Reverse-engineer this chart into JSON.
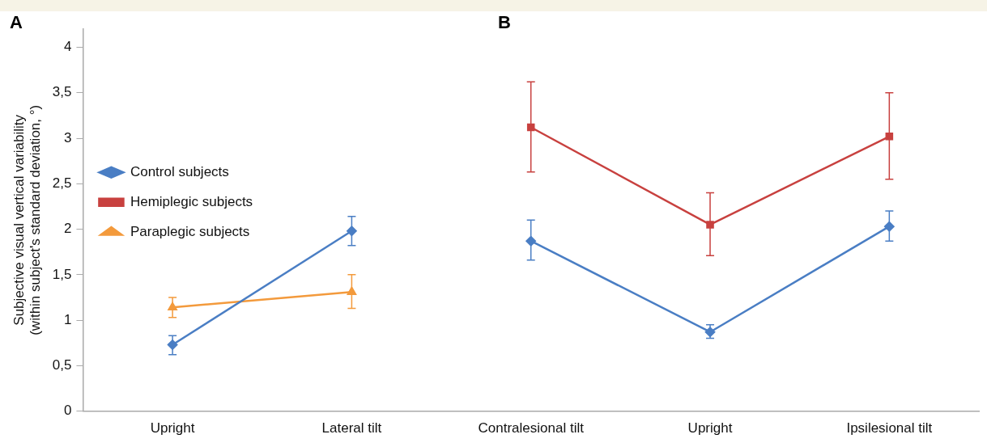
{
  "chart_data": {
    "type": "line",
    "ylabel": "Subjective visual vertical variability\n(within subject's standard deviation, °)",
    "categories": [
      "Upright",
      "Lateral tilt",
      "Contralesional tilt",
      "Upright",
      "Ipsilesional tilt"
    ],
    "series": [
      {
        "name": "Control subjects",
        "color": "#4a7ec4",
        "marker": "diamond",
        "values": [
          0.73,
          1.98,
          null,
          null,
          null
        ],
        "errors": [
          [
            0.62,
            0.83
          ],
          [
            1.82,
            2.14
          ],
          null,
          null,
          null
        ]
      },
      {
        "name": "Hemiplegic subjects",
        "color": "#c8413f",
        "marker": "square",
        "values": [
          null,
          null,
          3.12,
          2.05,
          3.02
        ],
        "errors": [
          null,
          null,
          [
            2.63,
            3.62
          ],
          [
            1.71,
            2.4
          ],
          [
            2.55,
            3.5
          ]
        ]
      },
      {
        "name": "Paraplegic subjects",
        "color": "#f39a3c",
        "marker": "triangle",
        "values": [
          1.14,
          1.31,
          null,
          null,
          null
        ],
        "errors": [
          [
            1.03,
            1.25
          ],
          [
            1.13,
            1.5
          ],
          null,
          null,
          null
        ]
      },
      {
        "color": "#4a7ec4",
        "marker": "diamond",
        "values": [
          null,
          null,
          1.87,
          0.87,
          2.03
        ],
        "errors": [
          null,
          null,
          [
            1.66,
            2.1
          ],
          [
            0.8,
            0.95
          ],
          [
            1.87,
            2.2
          ]
        ]
      }
    ],
    "annotations": [
      "A",
      "B"
    ],
    "ylim": [
      0,
      4.2
    ],
    "yticks": [
      0,
      {
        "value": 0.5,
        "label": "0,5"
      },
      1,
      {
        "value": 1.5,
        "label": "1,5"
      },
      2,
      {
        "value": 2.5,
        "label": "2,5"
      },
      3,
      {
        "value": 3.5,
        "label": "3,5"
      },
      4
    ],
    "grid": false,
    "legend": "top left"
  }
}
